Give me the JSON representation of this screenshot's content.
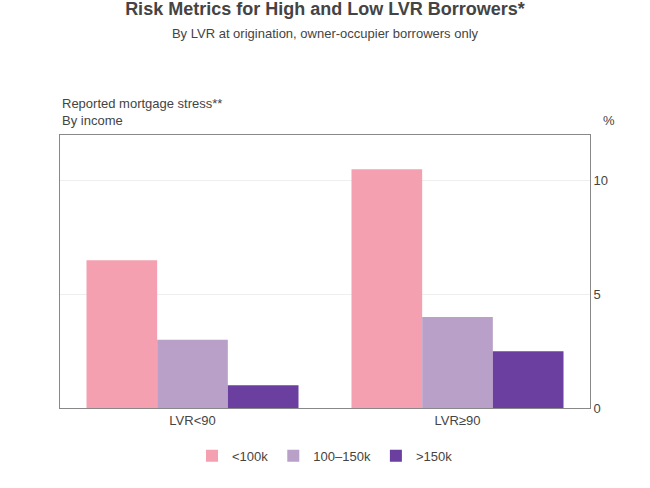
{
  "chart_data": {
    "type": "bar",
    "title": "Risk Metrics for High and Low LVR Borrowers*",
    "subtitle": "By LVR at origination, owner-occupier borrowers only",
    "annotations": [
      "Reported mortgage stress**",
      "By income"
    ],
    "ylabel": "%",
    "categories": [
      "LVR<90",
      "LVR≥90"
    ],
    "series": [
      {
        "name": "<100k",
        "color": "#F4A0B0",
        "values": [
          6.5,
          10.5
        ]
      },
      {
        "name": "100–150k",
        "color": "#B8A0C8",
        "values": [
          3.0,
          4.0
        ]
      },
      {
        "name": ">150k",
        "color": "#6B3FA0",
        "values": [
          1.0,
          2.5
        ]
      }
    ],
    "ylim": [
      0,
      12
    ],
    "yticks": [
      0,
      5,
      10
    ],
    "grid": true,
    "legend": "bottom"
  }
}
